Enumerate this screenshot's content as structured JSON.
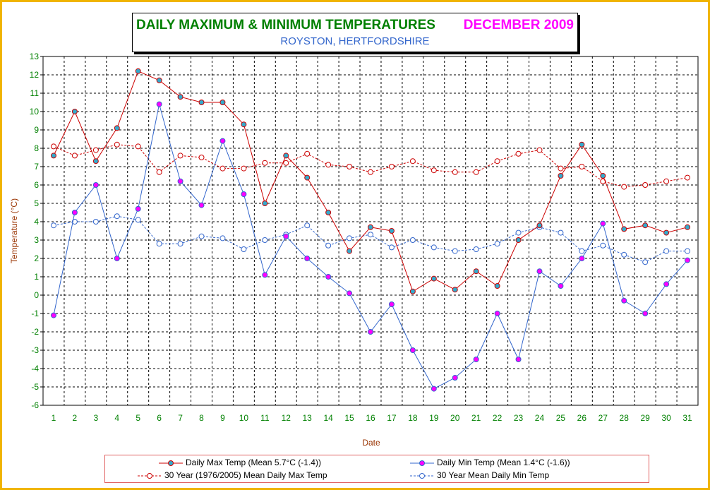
{
  "chart_data": {
    "type": "line",
    "title": "DAILY MAXIMUM & MINIMUM TEMPERATURES",
    "title_month": "DECEMBER 2009",
    "subtitle": "ROYSTON, HERTFORDSHIRE",
    "xlabel": "Date",
    "ylabel": "Temperature (°C)",
    "ylim": [
      -6,
      13
    ],
    "grid": true,
    "legend_position": "bottom",
    "x": [
      1,
      2,
      3,
      4,
      5,
      6,
      7,
      8,
      9,
      10,
      11,
      12,
      13,
      14,
      15,
      16,
      17,
      18,
      19,
      20,
      21,
      22,
      23,
      24,
      25,
      26,
      27,
      28,
      29,
      30,
      31
    ],
    "series": [
      {
        "name": "Daily Max Temp (Mean 5.7°C (-1.4))",
        "color": "#cc0000",
        "marker": "#33aacc",
        "style": "solid",
        "values": [
          7.6,
          10.0,
          7.3,
          9.1,
          12.2,
          11.7,
          10.8,
          10.5,
          10.5,
          9.3,
          5.0,
          7.6,
          6.4,
          4.5,
          2.4,
          3.7,
          3.5,
          0.2,
          0.9,
          0.3,
          1.3,
          0.5,
          3.0,
          3.8,
          6.5,
          8.2,
          6.5,
          3.6,
          3.8,
          3.4,
          3.7
        ]
      },
      {
        "name": "Daily Min Temp (Mean 1.4°C (-1.6))",
        "color": "#3366cc",
        "marker": "#ff00ff",
        "style": "solid",
        "values": [
          -1.1,
          4.5,
          6.0,
          2.0,
          4.7,
          10.4,
          6.2,
          4.9,
          8.4,
          5.5,
          1.1,
          3.2,
          2.0,
          1.0,
          0.1,
          -2.0,
          -0.5,
          -3.0,
          -5.1,
          -4.5,
          -3.5,
          -1.0,
          -3.5,
          1.3,
          0.5,
          2.0,
          3.9,
          -0.3,
          -1.0,
          0.6,
          1.9
        ]
      },
      {
        "name": "30 Year (1976/2005) Mean Daily Max Temp",
        "color": "#cc0000",
        "marker": "#ffffff",
        "style": "dashed",
        "values": [
          8.1,
          7.6,
          7.9,
          8.2,
          8.1,
          6.7,
          7.6,
          7.5,
          6.9,
          6.9,
          7.2,
          7.2,
          7.7,
          7.1,
          7.0,
          6.7,
          7.0,
          7.3,
          6.8,
          6.7,
          6.7,
          7.3,
          7.7,
          7.9,
          6.9,
          7.0,
          6.2,
          5.9,
          6.0,
          6.2,
          6.4
        ]
      },
      {
        "name": "30 Year Mean Daily Min Temp",
        "color": "#3366cc",
        "marker": "#ffffff",
        "style": "dashed",
        "values": [
          3.8,
          4.0,
          4.0,
          4.3,
          4.1,
          2.8,
          2.8,
          3.2,
          3.1,
          2.5,
          3.0,
          3.3,
          3.8,
          2.7,
          3.1,
          3.3,
          2.6,
          3.0,
          2.6,
          2.4,
          2.5,
          2.8,
          3.4,
          3.7,
          3.4,
          2.4,
          2.7,
          2.2,
          1.8,
          2.4,
          2.4
        ]
      }
    ]
  }
}
